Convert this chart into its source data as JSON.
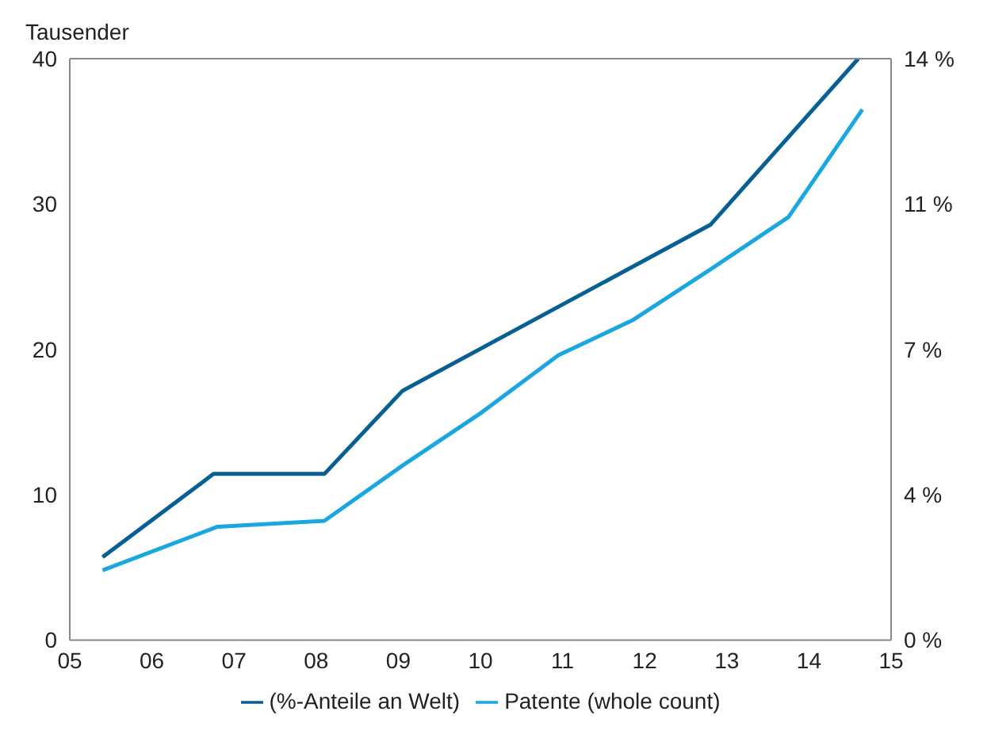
{
  "chart_data": {
    "type": "line",
    "ylabel": "Tausender",
    "xlim": [
      2005,
      2015
    ],
    "xticks": [
      {
        "value": 2005,
        "label": "05"
      },
      {
        "value": 2006,
        "label": "06"
      },
      {
        "value": 2007,
        "label": "07"
      },
      {
        "value": 2008,
        "label": "08"
      },
      {
        "value": 2009,
        "label": "09"
      },
      {
        "value": 2010,
        "label": "10"
      },
      {
        "value": 2011,
        "label": "11"
      },
      {
        "value": 2012,
        "label": "12"
      },
      {
        "value": 2013,
        "label": "13"
      },
      {
        "value": 2014,
        "label": "14"
      },
      {
        "value": 2015,
        "label": "15"
      }
    ],
    "ylim": [
      0,
      40
    ],
    "yticks": [
      0,
      10,
      20,
      30,
      40
    ],
    "y2lim": [
      0,
      14
    ],
    "y2ticks": [
      {
        "value": 0,
        "label": "0 %"
      },
      {
        "value": 3.5,
        "label": "4 %"
      },
      {
        "value": 7,
        "label": "7 %"
      },
      {
        "value": 10.5,
        "label": "11 %"
      },
      {
        "value": 14,
        "label": "14 %"
      }
    ],
    "series": [
      {
        "name": "Patente (whole count)",
        "color": "#1aa7e0",
        "x": [
          2005.4,
          2006.8,
          2008.1,
          2009.05,
          2010,
          2010.95,
          2011.85,
          2012.8,
          2013.75,
          2014.65
        ],
        "values": [
          4.8,
          7.8,
          8.2,
          12.0,
          15.6,
          19.6,
          22.0,
          25.5,
          29.1,
          36.5
        ]
      },
      {
        "name": "(%-Anteile an Welt)",
        "color": "#075f93",
        "axis": "y2",
        "x": [
          2005.4,
          2006.75,
          2008.1,
          2009.05,
          2012.8,
          2014.6
        ],
        "values": [
          2.0,
          4.0,
          4.0,
          6.0,
          10.0,
          14.0
        ]
      }
    ],
    "grid": false,
    "legend": "bottom",
    "marker": "none",
    "line_style": "solid"
  }
}
